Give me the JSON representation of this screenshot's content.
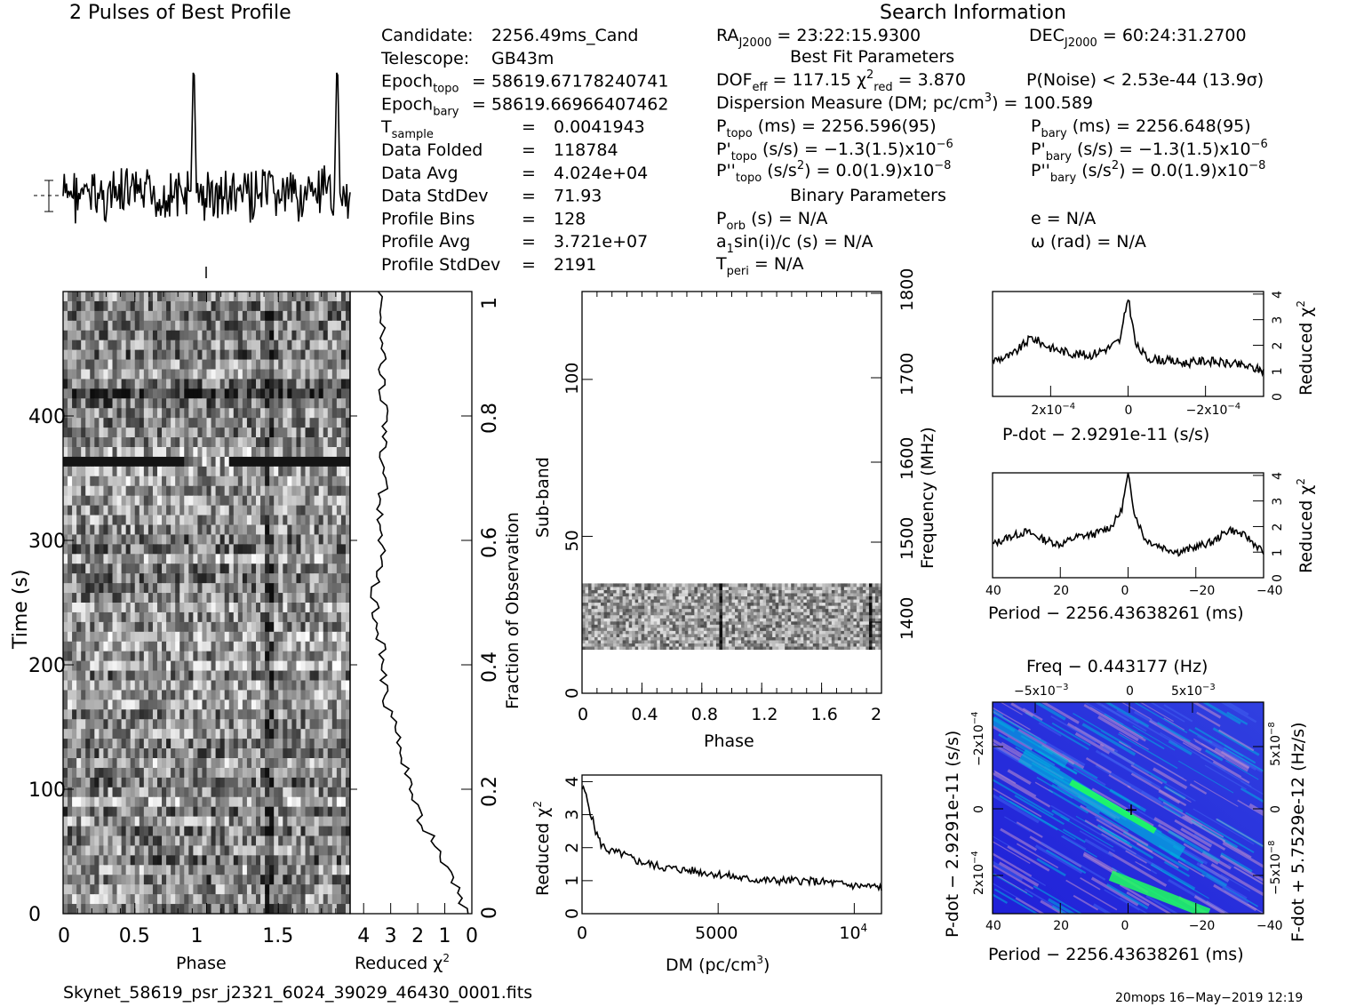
{
  "header": {
    "profile_title": "2 Pulses of Best Profile",
    "search_title": "Search Information"
  },
  "info_left": [
    {
      "label": "Candidate:",
      "value": "2256.49ms_Cand"
    },
    {
      "label": "Telescope:",
      "value": "GB43m"
    },
    {
      "label": "Epoch",
      "sub": "topo",
      "value": "= 58619.67178240741"
    },
    {
      "label": "Epoch",
      "sub": "bary",
      "value": "= 58619.66966407462"
    },
    {
      "label": "T",
      "sub": "sample",
      "value": "0.0041943"
    },
    {
      "label": "Data Folded",
      "value": "118784"
    },
    {
      "label": "Data Avg",
      "value": "4.024e+04"
    },
    {
      "label": "Data StdDev",
      "value": "71.93"
    },
    {
      "label": "Profile Bins",
      "value": "128"
    },
    {
      "label": "Profile Avg",
      "value": "3.721e+07"
    },
    {
      "label": "Profile StdDev",
      "value": "2191"
    }
  ],
  "info_mid": {
    "ra": "RA",
    "ra_sub": "J2000",
    "ra_value": "= 23:22:15.9300",
    "dec": "DEC",
    "dec_sub": "J2000",
    "dec_value": "= 60:24:31.2700",
    "best_fit": "Best Fit Parameters",
    "dof": "DOF",
    "dof_sub": "eff",
    "dof_value": "= 117.15",
    "chi_value": "= 3.870",
    "chi_sub": "red",
    "pnoise": "P(Noise) < 2.53e-44   (13.9σ)",
    "dm": "Dispersion Measure (DM; pc/cm",
    "dm_value": ") = 100.589",
    "ptopo": "(ms) =  2256.596(95)",
    "pbary": "(ms) =  2256.648(95)",
    "pdtopo": "(s/s) = −1.3(1.5)x10",
    "pdbary": "(s/s) = −1.3(1.5)x10",
    "pddtopo": "(s/s",
    "pddtopo_val": ") = 0.0(1.9)x10",
    "pddbary": "(s/s",
    "pddbary_val": ") = 0.0(1.9)x10",
    "binary": "Binary Parameters",
    "porb": "(s) = N/A",
    "e": "e = N/A",
    "a1": "sin(i)/c (s) = N/A",
    "omega": "ω (rad) = N/A",
    "tperi": "= N/A"
  },
  "footer": {
    "filename": "Skynet_58619_psr_j2321_6024_39029_46430_0001.fits",
    "stamp": "20mops 16−May−2019 12:19"
  },
  "colors": {
    "background": "#ffffff",
    "ink": "#000000",
    "map_low": "#1010d0",
    "map_mid": "#00b0e0",
    "map_high": "#20ff60",
    "map_hi2": "#c090d0"
  },
  "chart_data": [
    {
      "type": "line",
      "name": "profile",
      "title": "2 Pulses of Best Profile",
      "x_range": [
        0,
        2
      ],
      "peaks_phase": [
        0.91,
        1.91
      ],
      "bins": 128
    },
    {
      "type": "heatmap",
      "name": "time-phase",
      "xlabel": "Phase",
      "ylabel": "Time (s)",
      "xlim": [
        0,
        2
      ],
      "ylim": [
        0,
        500
      ],
      "x_ticks": [
        "0",
        "0.5",
        "1",
        "1.5"
      ],
      "y_ticks": [
        "0",
        "100",
        "200",
        "300",
        "400"
      ]
    },
    {
      "type": "line",
      "name": "reduced-chi2-vs-time",
      "xlabel": "Reduced χ2",
      "ylabel": "Fraction of Observation",
      "x_ticks": [
        "4",
        "3",
        "2",
        "1",
        "0"
      ],
      "y_ticks": [
        "0",
        "0.2",
        "0.4",
        "0.6",
        "0.8",
        "1"
      ],
      "xlim": [
        4.5,
        0
      ],
      "frac": [
        0.0,
        0.05,
        0.1,
        0.15,
        0.2,
        0.25,
        0.3,
        0.35,
        0.4,
        0.45,
        0.5,
        0.55,
        0.6,
        0.65,
        0.7,
        0.75,
        0.8,
        0.85,
        0.9,
        0.95,
        1.0
      ],
      "chi": [
        0.2,
        0.6,
        1.2,
        1.9,
        2.2,
        2.6,
        2.9,
        3.2,
        3.3,
        3.4,
        3.6,
        3.5,
        3.3,
        3.4,
        3.2,
        3.3,
        3.2,
        3.3,
        3.3,
        3.3,
        3.3
      ]
    },
    {
      "type": "heatmap",
      "name": "subband-phase",
      "xlabel": "Phase",
      "ylabel": "Sub-band",
      "y2label": "Frequency (MHz)",
      "xlim": [
        0,
        2
      ],
      "ylim": [
        0,
        128
      ],
      "x_ticks": [
        "0",
        "0.4",
        "0.8",
        "1.2",
        "1.6",
        "2"
      ],
      "y_ticks": [
        "0",
        "50",
        "100"
      ],
      "y2_ticks": [
        "1400",
        "1500",
        "1600",
        "1700",
        "1800"
      ],
      "band_range": [
        14,
        35
      ]
    },
    {
      "type": "line",
      "name": "dm-chi2",
      "xlabel": "DM (pc/cm3)",
      "ylabel": "Reduced χ2",
      "xlim": [
        0,
        11000
      ],
      "ylim": [
        0,
        4.2
      ],
      "x_ticks": [
        "0",
        "5000",
        "10"
      ],
      "y_ticks": [
        "0",
        "1",
        "2",
        "3",
        "4"
      ],
      "x": [
        0,
        100,
        300,
        500,
        700,
        1000,
        1500,
        2000,
        3000,
        4000,
        5000,
        6000,
        7000,
        8000,
        9000,
        10000,
        11000
      ],
      "y": [
        3.8,
        3.7,
        3.1,
        2.5,
        2.1,
        1.9,
        1.8,
        1.6,
        1.4,
        1.3,
        1.2,
        1.05,
        1.0,
        1.0,
        0.95,
        0.85,
        0.8
      ]
    },
    {
      "type": "line",
      "name": "pdot-chi2",
      "xlabel": "P-dot − 2.9291e-11 (s/s)",
      "ylabel": "Reduced χ2",
      "xlim": [
        0.00035,
        -0.00035
      ],
      "ylim": [
        0,
        4.1
      ],
      "x_ticks": [
        "2x10",
        "0",
        "−2x10"
      ],
      "y_ticks": [
        "0",
        "1",
        "2",
        "3",
        "4"
      ],
      "x": [
        0.00035,
        0.0003,
        0.00025,
        0.0002,
        0.00015,
        0.0001,
        5e-05,
        2e-05,
        0,
        -2e-05,
        -5e-05,
        -0.0001,
        -0.00015,
        -0.0002,
        -0.00025,
        -0.0003,
        -0.00035
      ],
      "y": [
        1.4,
        1.6,
        2.3,
        1.9,
        1.7,
        1.6,
        1.9,
        2.2,
        3.9,
        2.0,
        1.5,
        1.4,
        1.3,
        1.4,
        1.3,
        1.2,
        1.0
      ]
    },
    {
      "type": "line",
      "name": "period-chi2",
      "xlabel": "Period − 2256.43638261 (ms)",
      "ylabel": "Reduced χ2",
      "xlim": [
        40,
        -40
      ],
      "ylim": [
        0,
        4.1
      ],
      "x_ticks": [
        "40",
        "20",
        "0",
        "−20",
        "−40"
      ],
      "y_ticks": [
        "0",
        "1",
        "2",
        "3",
        "4"
      ],
      "x": [
        40,
        35,
        30,
        25,
        20,
        15,
        10,
        5,
        2,
        0,
        -2,
        -5,
        -10,
        -15,
        -20,
        -25,
        -30,
        -35,
        -40
      ],
      "y": [
        1.3,
        1.6,
        1.8,
        1.5,
        1.3,
        1.6,
        1.7,
        2.0,
        2.6,
        4.0,
        2.5,
        1.5,
        1.2,
        1.0,
        1.2,
        1.4,
        1.9,
        1.6,
        1.0
      ]
    },
    {
      "type": "heatmap",
      "name": "period-pdot",
      "title": "Freq − 0.443177 (Hz)",
      "xlabel": "Period − 2256.43638261 (ms)",
      "ylabel": "P-dot − 2.9291e-11 (s/s)",
      "y2label": "F-dot + 5.7529e-12 (Hz/s)",
      "xlim": [
        40,
        -40
      ],
      "x_ticks": [
        "40",
        "20",
        "0",
        "−20",
        "−40"
      ],
      "top_ticks": [
        "−5x10",
        "0",
        "5x10"
      ],
      "y_ticks": [
        "−2x10",
        "0",
        "2x10"
      ],
      "y2_ticks": [
        "5x10",
        "0",
        "−5x10"
      ],
      "best": [
        0,
        0
      ]
    }
  ],
  "labels": {
    "phase": "Phase",
    "time": "Time (s)",
    "redchi": "Reduced χ",
    "frac": "Fraction of Observation",
    "subband": "Sub-band",
    "freq": "Frequency (MHz)",
    "dm": "DM (pc/cm",
    "pdot": "P-dot − 2.9291e-11 (s/s)",
    "period": "Period − 2256.43638261 (ms)",
    "freqtop": "Freq − 0.443177 (Hz)",
    "pdotv": "P-dot − 2.9291e-11 (s/s)",
    "fdot": "F-dot + 5.7529e-12 (Hz/s)"
  }
}
